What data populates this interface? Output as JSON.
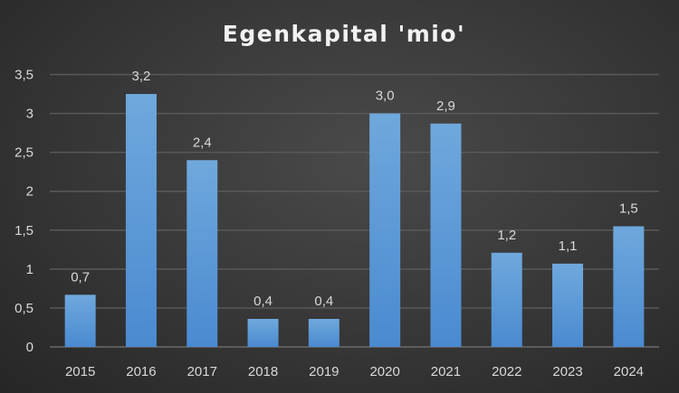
{
  "chart_data": {
    "type": "bar",
    "title": "Egenkapital 'mio'",
    "xlabel": "",
    "ylabel": "",
    "categories": [
      "2015",
      "2016",
      "2017",
      "2018",
      "2019",
      "2020",
      "2021",
      "2022",
      "2023",
      "2024"
    ],
    "values": [
      0.67,
      3.25,
      2.4,
      0.36,
      0.36,
      3.0,
      2.87,
      1.21,
      1.07,
      1.55
    ],
    "data_labels": [
      "0,7",
      "3,2",
      "2,4",
      "0,4",
      "0,4",
      "3,0",
      "2,9",
      "1,2",
      "1,1",
      "1,5"
    ],
    "ylim": [
      0,
      3.5
    ],
    "yticks": [
      0,
      0.5,
      1,
      1.5,
      2,
      2.5,
      3,
      3.5
    ],
    "ytick_labels": [
      "0",
      "0,5",
      "1",
      "1,5",
      "2",
      "2,5",
      "3",
      "3,5"
    ],
    "grid": true,
    "legend": "none",
    "bar_color": "#5b9bd5"
  }
}
